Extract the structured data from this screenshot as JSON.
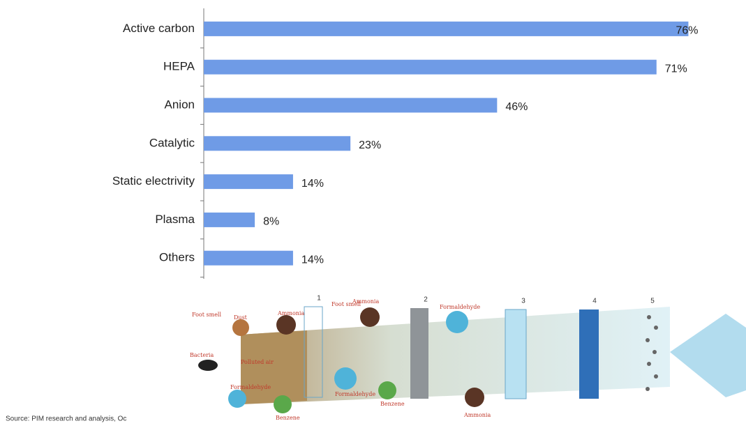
{
  "chart_data": {
    "type": "bar",
    "orientation": "horizontal",
    "categories": [
      "Active carbon",
      "HEPA",
      "Anion",
      "Catalytic",
      "Static electrivity",
      "Plasma",
      "Others"
    ],
    "values": [
      76,
      71,
      46,
      23,
      14,
      8,
      14
    ],
    "value_labels": [
      "76%",
      "71%",
      "46%",
      "23%",
      "14%",
      "8%",
      "14%"
    ],
    "color": "#6f9be6",
    "xlim": [
      0,
      80
    ]
  },
  "illustration": {
    "stages": [
      "1",
      "2",
      "3",
      "4",
      "5"
    ],
    "labels": [
      "Foot smell",
      "Dust",
      "Ammonia",
      "Bacteria",
      "Polluted air",
      "Foot smell",
      "Ammonia",
      "Formaldehyde",
      "Formaldehyde",
      "Benzene",
      "Formaldehyde",
      "Benzene",
      "Ammonia"
    ]
  },
  "source": "Source: PIM research and analysis, Oc"
}
